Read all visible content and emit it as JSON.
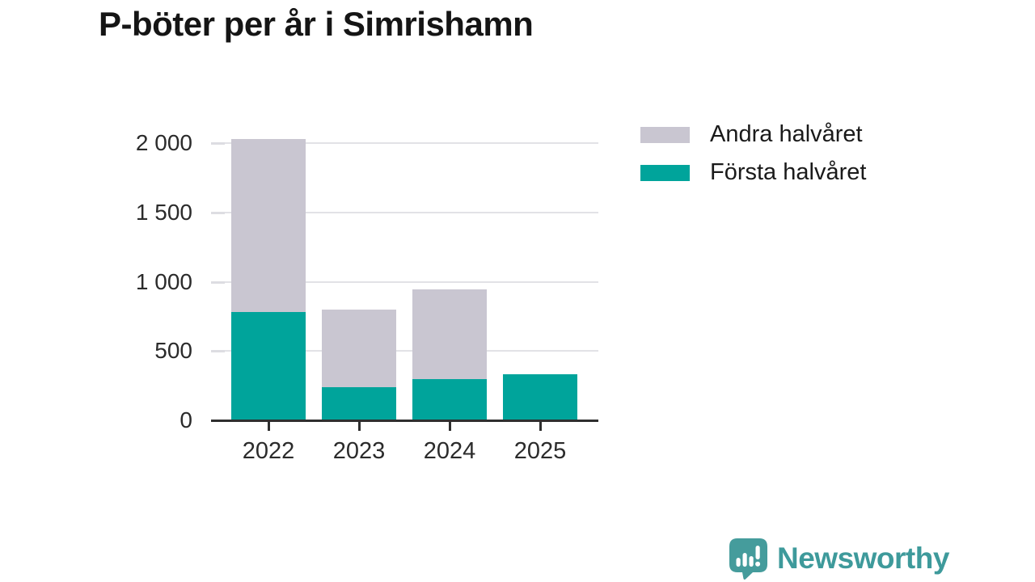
{
  "title": "P-böter per år i Simrishamn",
  "chart_data": {
    "type": "bar",
    "stacked": true,
    "title": "P-böter per år i Simrishamn",
    "xlabel": "",
    "ylabel": "",
    "categories": [
      "2022",
      "2023",
      "2024",
      "2025"
    ],
    "series": [
      {
        "name": "Första halvåret",
        "color": "#00a49b",
        "values": [
          780,
          240,
          300,
          330
        ]
      },
      {
        "name": "Andra halvåret",
        "color": "#c9c6d1",
        "values": [
          1250,
          560,
          645,
          0
        ]
      }
    ],
    "totals": [
      2030,
      800,
      945,
      330
    ],
    "ylim": [
      0,
      2000
    ],
    "yticks": [
      {
        "value": 0,
        "label": "0"
      },
      {
        "value": 500,
        "label": "500"
      },
      {
        "value": 1000,
        "label": "1 000"
      },
      {
        "value": 1500,
        "label": "1 500"
      },
      {
        "value": 2000,
        "label": "2 000"
      }
    ],
    "grid": true,
    "legend_position": "top-right"
  },
  "legend": {
    "items": [
      {
        "label": "Andra halvåret",
        "color": "#c9c6d1"
      },
      {
        "label": "Första halvåret",
        "color": "#00a49b"
      }
    ]
  },
  "footer": {
    "brand": "Newsworthy"
  },
  "colors": {
    "first_half": "#00a49b",
    "second_half": "#c9c6d1",
    "axis": "#2f2f2f",
    "grid": "#e2e2e6",
    "brand": "#3e9a9b",
    "text": "#1a1a1a"
  }
}
